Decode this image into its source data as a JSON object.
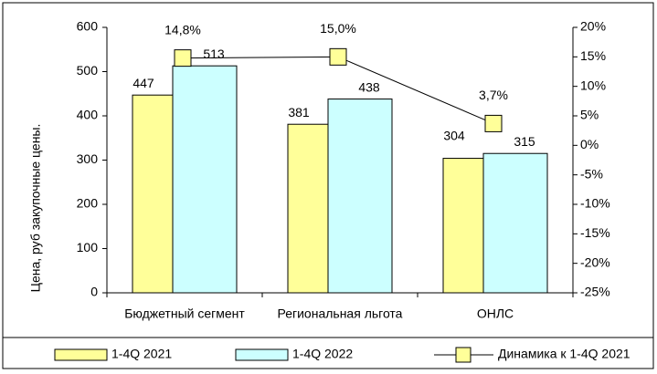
{
  "chart_data": {
    "type": "bar",
    "categories": [
      "Бюджетный сегмент",
      "Региональная льгота",
      "ОНЛС"
    ],
    "y_label": "Цена, руб закупочные цены.",
    "series": [
      {
        "name": "1-4Q 2021",
        "color": "#ffff99",
        "values": [
          447,
          381,
          304
        ]
      },
      {
        "name": "1-4Q 2022",
        "color": "#ccffff",
        "values": [
          513,
          438,
          315
        ]
      },
      {
        "name": "Динамика к 1-4Q 2021",
        "type": "line",
        "axis": "y2",
        "color": "#ffff99",
        "values": [
          14.8,
          15.0,
          3.7
        ],
        "value_labels": [
          "14,8%",
          "15,0%",
          "3,7%"
        ]
      }
    ],
    "ylim": [
      0,
      600
    ],
    "yticks": [
      0,
      100,
      200,
      300,
      400,
      500,
      600
    ],
    "y2lim": [
      -25,
      20
    ],
    "y2ticks": [
      {
        "value": -25,
        "label": "-25%"
      },
      {
        "value": -20,
        "label": "-20%"
      },
      {
        "value": -15,
        "label": "-15%"
      },
      {
        "value": -10,
        "label": "-10%"
      },
      {
        "value": -5,
        "label": "-5%"
      },
      {
        "value": 0,
        "label": "0%"
      },
      {
        "value": 5,
        "label": "5%"
      },
      {
        "value": 10,
        "label": "10%"
      },
      {
        "value": 15,
        "label": "15%"
      },
      {
        "value": 20,
        "label": "20%"
      }
    ],
    "legend": "bottom"
  }
}
